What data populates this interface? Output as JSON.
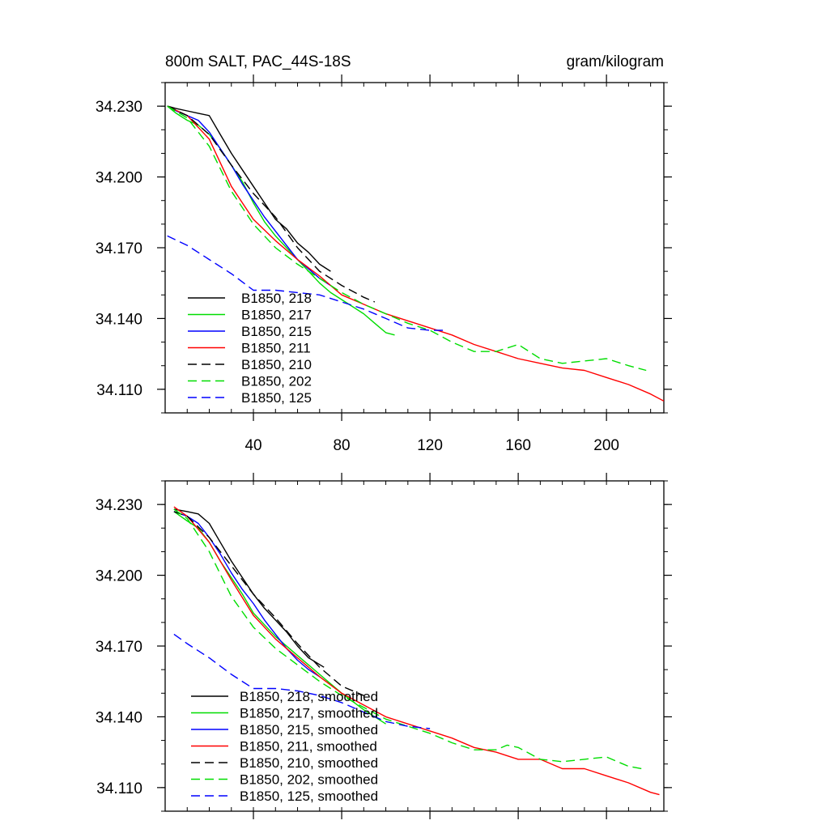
{
  "chart_data": [
    {
      "type": "line",
      "title_left": "800m SALT, PAC_44S-18S",
      "title_right": "gram/kilogram",
      "xlim": [
        0,
        226
      ],
      "ylim": [
        34.1,
        34.24
      ],
      "xticks": [
        40,
        80,
        120,
        160,
        200
      ],
      "xtick_labels": [
        "40",
        "80",
        "120",
        "160",
        "200"
      ],
      "yticks": [
        34.11,
        34.14,
        34.17,
        34.2,
        34.23
      ],
      "ytick_labels": [
        "34.110",
        "34.140",
        "34.170",
        "34.200",
        "34.230"
      ],
      "grid": false,
      "legend_position": "bottom-left",
      "series": [
        {
          "name": "B1850, 218",
          "color": "#000000",
          "dash": "solid",
          "x": [
            1,
            5,
            10,
            15,
            20,
            25,
            30,
            35,
            40,
            45,
            50,
            55,
            60,
            65,
            70,
            75
          ],
          "y": [
            34.23,
            34.229,
            34.228,
            34.227,
            34.226,
            34.218,
            34.21,
            34.203,
            34.196,
            34.189,
            34.182,
            34.178,
            34.172,
            34.168,
            34.163,
            34.16
          ]
        },
        {
          "name": "B1850, 217",
          "color": "#00dd00",
          "dash": "solid",
          "x": [
            1,
            5,
            10,
            15,
            20,
            25,
            30,
            35,
            40,
            45,
            50,
            55,
            60,
            65,
            70,
            75,
            80,
            85,
            90,
            95,
            100,
            104
          ],
          "y": [
            34.23,
            34.227,
            34.224,
            34.222,
            34.218,
            34.212,
            34.205,
            34.198,
            34.189,
            34.181,
            34.175,
            34.17,
            34.165,
            34.16,
            34.155,
            34.151,
            34.148,
            34.145,
            34.142,
            34.138,
            34.134,
            34.133
          ]
        },
        {
          "name": "B1850, 215",
          "color": "#0000ff",
          "dash": "solid",
          "x": [
            1,
            5,
            10,
            15,
            20,
            25,
            30,
            35,
            40,
            45,
            50,
            55,
            60,
            65,
            70,
            75
          ],
          "y": [
            34.23,
            34.228,
            34.226,
            34.224,
            34.219,
            34.212,
            34.205,
            34.197,
            34.19,
            34.183,
            34.177,
            34.171,
            34.165,
            34.161,
            34.157,
            34.154
          ]
        },
        {
          "name": "B1850, 211",
          "color": "#ff0000",
          "dash": "solid",
          "x": [
            1,
            10,
            20,
            30,
            40,
            50,
            60,
            70,
            80,
            90,
            100,
            110,
            120,
            130,
            140,
            150,
            160,
            170,
            180,
            190,
            200,
            210,
            220,
            226
          ],
          "y": [
            34.23,
            34.226,
            34.216,
            34.196,
            34.182,
            34.173,
            34.165,
            34.158,
            34.15,
            34.146,
            34.142,
            34.139,
            34.136,
            34.133,
            34.129,
            34.126,
            34.123,
            34.121,
            34.119,
            34.118,
            34.115,
            34.112,
            34.108,
            34.105
          ]
        },
        {
          "name": "B1850, 210",
          "color": "#000000",
          "dash": "dashed",
          "x": [
            1,
            10,
            20,
            30,
            40,
            50,
            60,
            70,
            80,
            90,
            95
          ],
          "y": [
            34.23,
            34.226,
            34.218,
            34.205,
            34.193,
            34.183,
            34.17,
            34.16,
            34.154,
            34.149,
            34.147
          ]
        },
        {
          "name": "B1850, 202",
          "color": "#00dd00",
          "dash": "dashed",
          "x": [
            1,
            10,
            20,
            30,
            40,
            50,
            60,
            70,
            80,
            90,
            100,
            110,
            120,
            130,
            140,
            150,
            160,
            170,
            180,
            190,
            200,
            210,
            218
          ],
          "y": [
            34.23,
            34.225,
            34.213,
            34.194,
            34.18,
            34.17,
            34.163,
            34.157,
            34.151,
            34.146,
            34.142,
            34.138,
            34.135,
            34.13,
            34.126,
            34.126,
            34.129,
            34.123,
            34.121,
            34.122,
            34.123,
            34.12,
            34.118
          ]
        },
        {
          "name": "B1850, 125",
          "color": "#0000ff",
          "dash": "dashed",
          "x": [
            1,
            10,
            20,
            30,
            40,
            50,
            60,
            70,
            80,
            90,
            100,
            110,
            120,
            126
          ],
          "y": [
            34.175,
            34.171,
            34.165,
            34.159,
            34.152,
            34.152,
            34.151,
            34.15,
            34.147,
            34.144,
            34.14,
            34.136,
            34.135,
            34.135
          ]
        }
      ]
    },
    {
      "type": "line",
      "xlim": [
        0,
        226
      ],
      "ylim": [
        34.1,
        34.24
      ],
      "xticks": [
        40,
        80,
        120,
        160,
        200
      ],
      "yticks": [
        34.11,
        34.14,
        34.17,
        34.2,
        34.23
      ],
      "ytick_labels": [
        "34.110",
        "34.140",
        "34.170",
        "34.200",
        "34.230"
      ],
      "grid": false,
      "legend_position": "bottom-left",
      "series": [
        {
          "name": "B1850, 218, smoothed",
          "color": "#000000",
          "dash": "solid",
          "x": [
            4,
            10,
            15,
            20,
            25,
            30,
            35,
            40,
            45,
            50,
            55,
            60,
            65,
            72
          ],
          "y": [
            34.228,
            34.227,
            34.226,
            34.222,
            34.214,
            34.206,
            34.199,
            34.192,
            34.186,
            34.181,
            34.176,
            34.17,
            34.165,
            34.161
          ]
        },
        {
          "name": "B1850, 217, smoothed",
          "color": "#00dd00",
          "dash": "solid",
          "x": [
            4,
            10,
            15,
            20,
            25,
            30,
            35,
            40,
            50,
            60,
            70,
            80,
            90,
            100
          ],
          "y": [
            34.227,
            34.223,
            34.22,
            34.214,
            34.206,
            34.199,
            34.192,
            34.184,
            34.174,
            34.166,
            34.158,
            34.15,
            34.143,
            34.137
          ]
        },
        {
          "name": "B1850, 215, smoothed",
          "color": "#0000ff",
          "dash": "solid",
          "x": [
            4,
            10,
            15,
            20,
            25,
            30,
            35,
            40,
            45,
            50,
            55,
            60,
            65,
            70
          ],
          "y": [
            34.227,
            34.225,
            34.222,
            34.216,
            34.209,
            34.201,
            34.194,
            34.188,
            34.181,
            34.175,
            34.169,
            34.164,
            34.16,
            34.157
          ]
        },
        {
          "name": "B1850, 211, smoothed",
          "color": "#ff0000",
          "dash": "solid",
          "x": [
            4,
            10,
            20,
            30,
            40,
            50,
            60,
            70,
            80,
            90,
            100,
            110,
            120,
            130,
            140,
            150,
            160,
            170,
            180,
            190,
            200,
            210,
            220,
            224
          ],
          "y": [
            34.229,
            34.225,
            34.214,
            34.198,
            34.183,
            34.173,
            34.165,
            34.157,
            34.15,
            34.145,
            34.14,
            34.137,
            34.134,
            34.131,
            34.127,
            34.125,
            34.122,
            34.122,
            34.118,
            34.118,
            34.115,
            34.112,
            34.108,
            34.107
          ]
        },
        {
          "name": "B1850, 210, smoothed",
          "color": "#000000",
          "dash": "dashed",
          "x": [
            4,
            10,
            20,
            30,
            40,
            50,
            60,
            70,
            80,
            90
          ],
          "y": [
            34.227,
            34.225,
            34.216,
            34.204,
            34.192,
            34.182,
            34.171,
            34.161,
            34.153,
            34.149
          ]
        },
        {
          "name": "B1850, 202, smoothed",
          "color": "#00dd00",
          "dash": "dashed",
          "x": [
            4,
            10,
            20,
            30,
            40,
            50,
            60,
            70,
            80,
            90,
            100,
            110,
            120,
            130,
            140,
            150,
            155,
            160,
            170,
            180,
            190,
            200,
            210,
            216
          ],
          "y": [
            34.228,
            34.224,
            34.21,
            34.191,
            34.178,
            34.169,
            34.162,
            34.155,
            34.149,
            34.144,
            34.139,
            34.136,
            34.133,
            34.129,
            34.126,
            34.126,
            34.128,
            34.127,
            34.122,
            34.121,
            34.122,
            34.123,
            34.119,
            34.118
          ]
        },
        {
          "name": "B1850, 125, smoothed",
          "color": "#0000ff",
          "dash": "dashed",
          "x": [
            4,
            10,
            20,
            30,
            40,
            50,
            60,
            70,
            80,
            90,
            100,
            110,
            120
          ],
          "y": [
            34.175,
            34.171,
            34.165,
            34.158,
            34.152,
            34.152,
            34.151,
            34.149,
            34.146,
            34.142,
            34.138,
            34.136,
            34.135
          ]
        }
      ]
    }
  ]
}
